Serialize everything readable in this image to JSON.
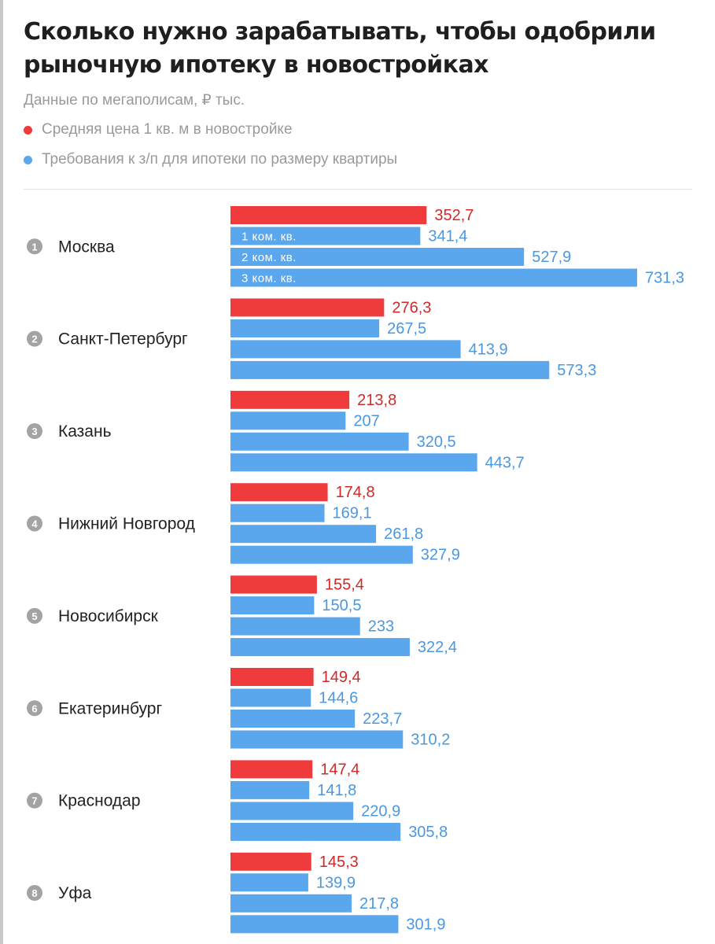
{
  "title": "Сколько нужно зарабатывать, чтобы одобрили рыночную ипотеку в новостройках",
  "subtitle": "Данные по мегаполисам, ₽ тыс.",
  "legend": [
    {
      "label": "Средняя цена 1 кв. м в новостройке",
      "color": "#ef3b3b"
    },
    {
      "label": "Требования к з/п для ипотеки по размеру квартиры",
      "color": "#5aa7ee"
    }
  ],
  "colors": {
    "price": "#ef3b3b",
    "salary": "#5aa7ee",
    "price_text": "#cf2a2a",
    "salary_text": "#4a98e2",
    "badge": "#a3a3a3"
  },
  "chart_data": {
    "type": "bar",
    "orientation": "horizontal",
    "title": "Сколько нужно зарабатывать, чтобы одобрили рыночную ипотеку в новостройках",
    "unit": "₽ тыс.",
    "xlim": [
      0,
      731.3
    ],
    "bar_labels": [
      "1 ком. кв.",
      "2 ком. кв.",
      "3 ком. кв."
    ],
    "categories": [
      "Москва",
      "Санкт-Петербург",
      "Казань",
      "Нижний Новгород",
      "Новосибирск",
      "Екатеринбург",
      "Краснодар",
      "Уфа"
    ],
    "ranks": [
      "1",
      "2",
      "3",
      "4",
      "5",
      "6",
      "7",
      "8"
    ],
    "series": [
      {
        "name": "Средняя цена 1 кв. м в новостройке",
        "values": [
          352.7,
          276.3,
          213.8,
          174.8,
          155.4,
          149.4,
          147.4,
          145.3
        ],
        "labels": [
          "352,7",
          "276,3",
          "213,8",
          "174,8",
          "155,4",
          "149,4",
          "147,4",
          "145,3"
        ]
      },
      {
        "name": "1 ком. кв.",
        "values": [
          341.4,
          267.5,
          207,
          169.1,
          150.5,
          144.6,
          141.8,
          139.9
        ],
        "labels": [
          "341,4",
          "267,5",
          "207",
          "169,1",
          "150,5",
          "144,6",
          "141,8",
          "139,9"
        ]
      },
      {
        "name": "2 ком. кв.",
        "values": [
          527.9,
          413.9,
          320.5,
          261.8,
          233,
          223.7,
          220.9,
          217.8
        ],
        "labels": [
          "527,9",
          "413,9",
          "320,5",
          "261,8",
          "233",
          "223,7",
          "220,9",
          "217,8"
        ]
      },
      {
        "name": "3 ком. кв.",
        "values": [
          731.3,
          573.3,
          443.7,
          327.9,
          322.4,
          310.2,
          305.8,
          301.9
        ],
        "labels": [
          "731,3",
          "573,3",
          "443,7",
          "327,9",
          "322,4",
          "310,2",
          "305,8",
          "301,9"
        ]
      }
    ]
  }
}
